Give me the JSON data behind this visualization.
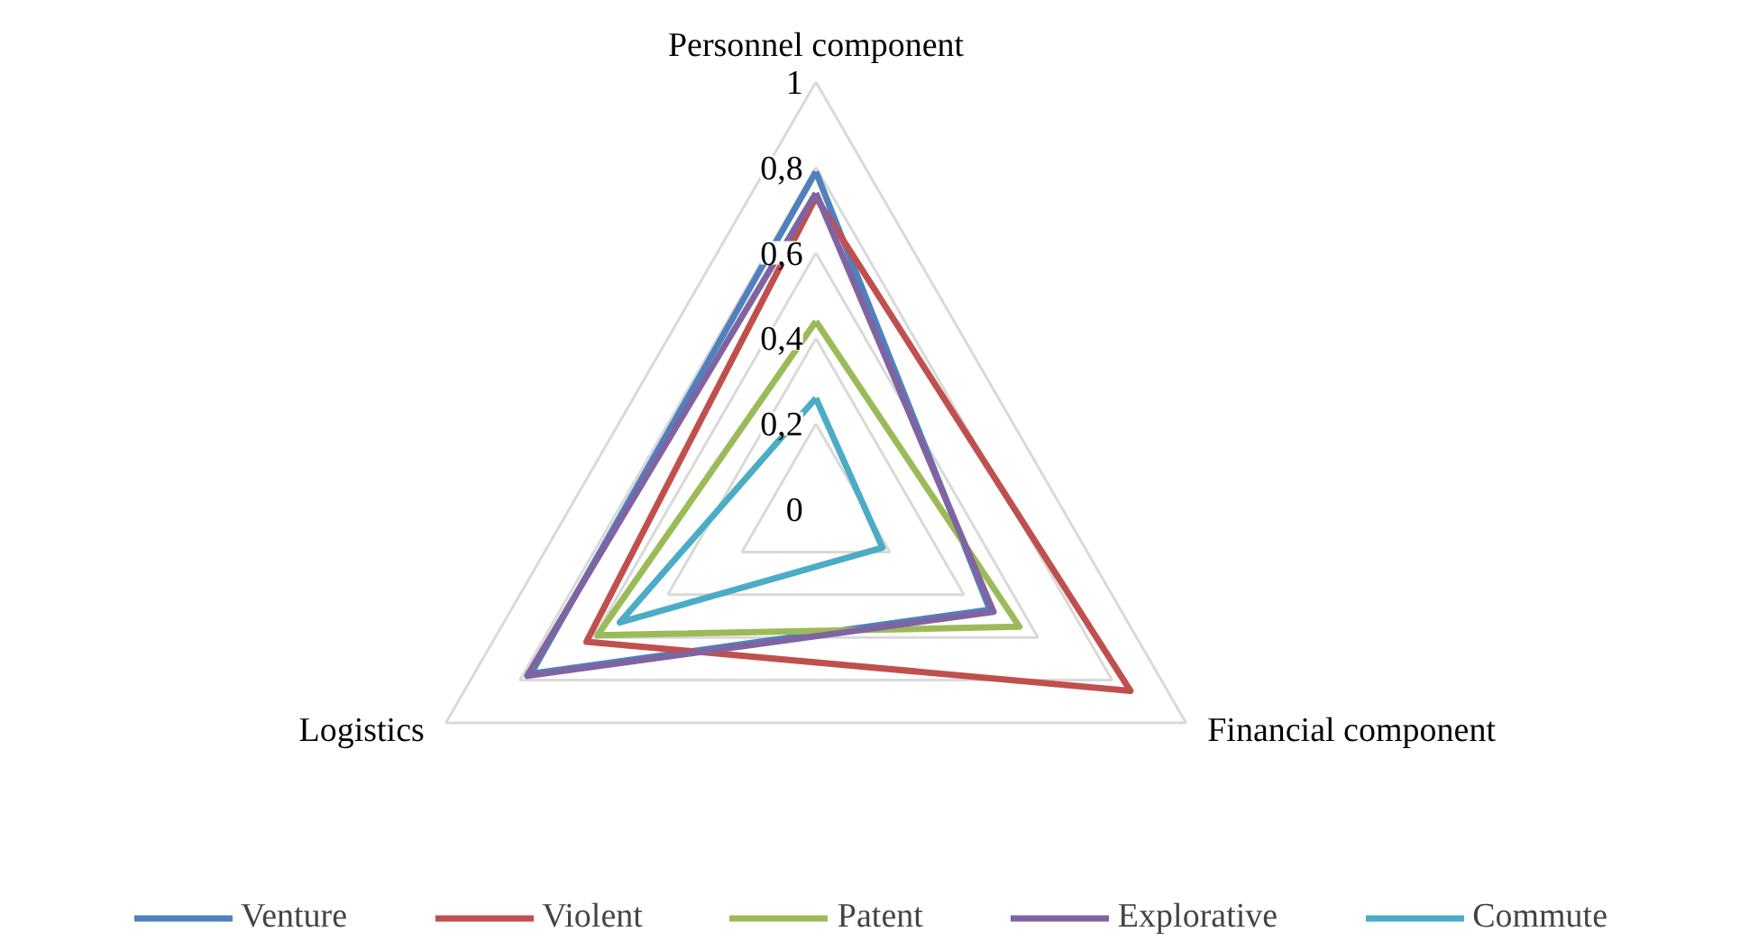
{
  "chart_data": {
    "type": "radar",
    "categories": [
      "Personnel component",
      "Financial component",
      "Logistics"
    ],
    "ylim": [
      0,
      1
    ],
    "yticks": [
      {
        "value": 0,
        "label": "0"
      },
      {
        "value": 0.2,
        "label": "0,2"
      },
      {
        "value": 0.4,
        "label": "0,4"
      },
      {
        "value": 0.6,
        "label": "0,6"
      },
      {
        "value": 0.8,
        "label": "0,8"
      },
      {
        "value": 1,
        "label": "1"
      }
    ],
    "grid": true,
    "legend": "bottom",
    "line_style": "solid",
    "series": [
      {
        "name": "Venture",
        "color": "#4f81bd",
        "values": [
          0.79,
          0.47,
          0.77
        ]
      },
      {
        "name": "Violent",
        "color": "#c0504d",
        "values": [
          0.73,
          0.85,
          0.62
        ]
      },
      {
        "name": "Patent",
        "color": "#9bbb59",
        "values": [
          0.44,
          0.55,
          0.59
        ]
      },
      {
        "name": "Explorative",
        "color": "#8064a2",
        "values": [
          0.74,
          0.48,
          0.78
        ]
      },
      {
        "name": "Commute",
        "color": "#4bacc6",
        "values": [
          0.26,
          0.18,
          0.53
        ]
      }
    ]
  }
}
